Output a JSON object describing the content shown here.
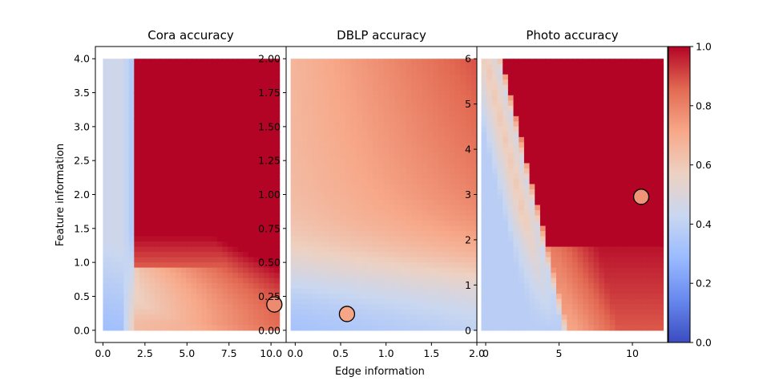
{
  "figure": {
    "xlabel": "Edge information",
    "ylabel": "Feature information"
  },
  "chart_data": [
    {
      "type": "heatmap",
      "title": "Cora accuracy",
      "xlabel": "Edge information",
      "ylabel": "Feature information",
      "xlim": [
        -0.45,
        10.9
      ],
      "ylim": [
        -0.18,
        4.18
      ],
      "xticks": [
        0.0,
        2.5,
        5.0,
        7.5,
        10.0
      ],
      "xtick_labels": [
        "0.0",
        "2.5",
        "5.0",
        "7.5",
        "10.0"
      ],
      "yticks": [
        0.0,
        0.5,
        1.0,
        1.5,
        2.0,
        2.5,
        3.0,
        3.5,
        4.0
      ],
      "ytick_labels": [
        "0.0",
        "0.5",
        "1.0",
        "1.5",
        "2.0",
        "2.5",
        "3.0",
        "3.5",
        "4.0"
      ],
      "grid_extent": {
        "x": [
          0,
          10.5
        ],
        "y": [
          0,
          4.0
        ]
      },
      "marker": {
        "x": 10.2,
        "y": 0.38,
        "value": 0.78
      }
    },
    {
      "type": "heatmap",
      "title": "DBLP accuracy",
      "xlim": [
        -0.1,
        2.0
      ],
      "ylim": [
        -0.09,
        2.09
      ],
      "xticks": [
        0.0,
        0.5,
        1.0,
        1.5,
        2.0
      ],
      "xtick_labels": [
        "0.0",
        "0.5",
        "1.0",
        "1.5",
        "2.0"
      ],
      "yticks": [
        0.0,
        0.25,
        0.5,
        0.75,
        1.0,
        1.25,
        1.5,
        1.75,
        2.0
      ],
      "ytick_labels": [
        "0.00",
        "0.25",
        "0.50",
        "0.75",
        "1.00",
        "1.25",
        "1.50",
        "1.75",
        "2.00"
      ],
      "grid_extent": {
        "x": [
          -0.05,
          2.0
        ],
        "y": [
          0,
          2.0
        ]
      },
      "marker": {
        "x": 0.57,
        "y": 0.12,
        "value": 0.72
      }
    },
    {
      "type": "heatmap",
      "title": "Photo accuracy",
      "xlim": [
        -0.6,
        12.4
      ],
      "ylim": [
        -0.27,
        6.27
      ],
      "xticks": [
        0,
        5,
        10
      ],
      "xtick_labels": [
        "0",
        "5",
        "10"
      ],
      "yticks": [
        0,
        1,
        2,
        3,
        4,
        5,
        6
      ],
      "ytick_labels": [
        "0",
        "1",
        "2",
        "3",
        "4",
        "5",
        "6"
      ],
      "grid_extent": {
        "x": [
          -0.3,
          12.1
        ],
        "y": [
          0,
          6.0
        ]
      },
      "marker": {
        "x": 10.6,
        "y": 2.95,
        "value": 0.76
      }
    }
  ],
  "colorbar": {
    "colormap": "coolwarm",
    "vmin": 0.0,
    "vmax": 1.0,
    "ticks": [
      0.0,
      0.2,
      0.4,
      0.6,
      0.8,
      1.0
    ],
    "tick_labels": [
      "0.0",
      "0.2",
      "0.4",
      "0.6",
      "0.8",
      "1.0"
    ],
    "colors": [
      "#3b4cc0",
      "#6788ee",
      "#9abbff",
      "#c9d7f0",
      "#edd1c2",
      "#f7a889",
      "#e26952",
      "#b40426"
    ]
  }
}
